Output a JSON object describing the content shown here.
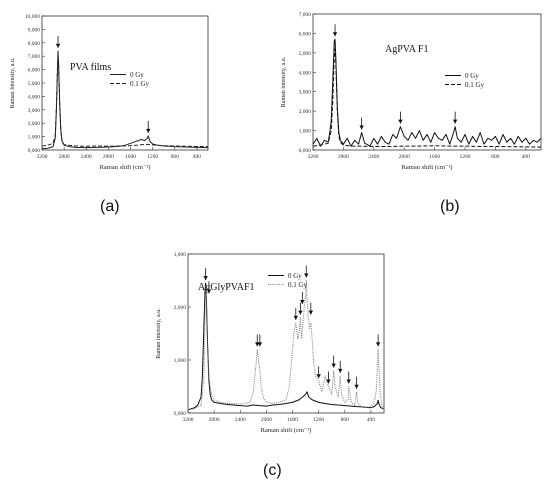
{
  "panels": [
    {
      "label": "(a)",
      "chart_data": {
        "type": "line",
        "title": "PVA films",
        "xlabel": "Raman shift (cm⁻¹)",
        "ylabel": "Raman Intensity, a.u.",
        "xlim": [
          3200,
          200
        ],
        "ylim": [
          0,
          10000
        ],
        "xticks": [
          3200,
          2800,
          2400,
          2000,
          1600,
          1200,
          800,
          400
        ],
        "yticks": [
          0,
          1000,
          2000,
          3000,
          4000,
          5000,
          6000,
          7000,
          8000,
          9000,
          10000
        ],
        "ytick_labels": [
          "0,000",
          "1,000",
          "2,000",
          "3,000",
          "4,000",
          "5,000",
          "6,000",
          "7,000",
          "8,000",
          "9,000",
          "10,000"
        ],
        "legend_position": "top-right",
        "arrows_at": [
          2910,
          1280
        ],
        "series": [
          {
            "name": "0   Gy",
            "style": "solid",
            "color": "#222222",
            "x": [
              3200,
              3100,
              3000,
              2960,
              2940,
              2920,
              2910,
              2900,
              2880,
              2860,
              2840,
              2800,
              2700,
              2600,
              2400,
              2200,
              2000,
              1800,
              1700,
              1600,
              1500,
              1450,
              1400,
              1350,
              1300,
              1280,
              1250,
              1200,
              1100,
              1000,
              900,
              800,
              600,
              400,
              200
            ],
            "y": [
              100,
              120,
              250,
              900,
              3000,
              6000,
              7400,
              6500,
              3500,
              1500,
              700,
              350,
              250,
              200,
              180,
              200,
              220,
              280,
              350,
              500,
              650,
              700,
              800,
              700,
              850,
              1050,
              650,
              450,
              350,
              300,
              280,
              250,
              220,
              200,
              180
            ]
          },
          {
            "name": "0.1 Gy",
            "style": "dashed",
            "color": "#222222",
            "x": [
              3200,
              3100,
              3000,
              2960,
              2940,
              2920,
              2910,
              2900,
              2880,
              2860,
              2840,
              2800,
              2700,
              2600,
              2400,
              2200,
              2000,
              1800,
              1600,
              1500,
              1400,
              1300,
              1200,
              1100,
              1000,
              800,
              600,
              400,
              200
            ],
            "y": [
              300,
              350,
              500,
              1100,
              3200,
              6200,
              7000,
              6200,
              3300,
              1400,
              700,
              400,
              350,
              300,
              280,
              300,
              280,
              300,
              320,
              350,
              400,
              420,
              380,
              350,
              320,
              300,
              280,
              260,
              250
            ]
          }
        ]
      }
    },
    {
      "label": "(b)",
      "chart_data": {
        "type": "line",
        "title": "AgPVA F1",
        "xlabel": "Raman shift (cm⁻¹)",
        "ylabel": "Raman intensity, a.u.",
        "xlim": [
          3200,
          200
        ],
        "ylim": [
          0,
          7000
        ],
        "xticks": [
          3200,
          2800,
          2400,
          2000,
          1600,
          1200,
          800,
          400
        ],
        "yticks": [
          0,
          1000,
          2000,
          3000,
          4000,
          5000,
          6000,
          7000
        ],
        "ytick_labels": [
          "0,000",
          "1,000",
          "2,000",
          "3,000",
          "4,000",
          "5,000",
          "6,000",
          "7,000"
        ],
        "legend_position": "top-right",
        "arrows_at": [
          2910,
          2560,
          2050,
          1330
        ],
        "series": [
          {
            "name": "0   Gy",
            "style": "solid",
            "color": "#111111",
            "x": [
              3200,
              3150,
              3100,
              3050,
              3000,
              2980,
              2960,
              2940,
              2920,
              2910,
              2900,
              2880,
              2860,
              2840,
              2800,
              2750,
              2700,
              2650,
              2600,
              2560,
              2520,
              2450,
              2400,
              2350,
              2300,
              2250,
              2200,
              2150,
              2100,
              2050,
              2000,
              1950,
              1900,
              1850,
              1800,
              1750,
              1700,
              1650,
              1600,
              1550,
              1500,
              1450,
              1400,
              1350,
              1330,
              1300,
              1250,
              1200,
              1150,
              1100,
              1050,
              1000,
              950,
              900,
              850,
              800,
              750,
              700,
              650,
              600,
              550,
              500,
              450,
              400,
              350,
              300,
              250,
              200
            ],
            "y": [
              300,
              600,
              200,
              500,
              400,
              900,
              1500,
              3500,
              5600,
              5700,
              4800,
              2200,
              900,
              500,
              300,
              600,
              200,
              500,
              300,
              900,
              350,
              200,
              600,
              300,
              700,
              400,
              300,
              800,
              600,
              1200,
              700,
              500,
              900,
              600,
              1000,
              500,
              800,
              400,
              900,
              600,
              500,
              800,
              300,
              900,
              1200,
              600,
              400,
              800,
              300,
              700,
              400,
              900,
              300,
              600,
              500,
              700,
              300,
              800,
              400,
              600,
              300,
              700,
              400,
              600,
              300,
              500,
              400,
              600
            ]
          },
          {
            "name": "0.1 Gy",
            "style": "dashed",
            "color": "#111111",
            "x": [
              3200,
              3100,
              3000,
              2960,
              2940,
              2920,
              2910,
              2900,
              2880,
              2860,
              2840,
              2800,
              2700,
              2600,
              2400,
              2200,
              2000,
              1800,
              1600,
              1400,
              1200,
              1000,
              800,
              600,
              400,
              200
            ],
            "y": [
              200,
              250,
              350,
              1000,
              2500,
              4800,
              5200,
              4500,
              2000,
              700,
              400,
              250,
              200,
              200,
              180,
              180,
              200,
              200,
              220,
              200,
              200,
              180,
              180,
              170,
              160,
              150
            ]
          }
        ]
      }
    },
    {
      "label": "(c)",
      "chart_data": {
        "type": "line",
        "title": "AgGlyPVAF1",
        "xlabel": "Raman shift (cm⁻¹)",
        "ylabel": "Raman intensity, a.u.",
        "xlim": [
          3200,
          200
        ],
        "ylim": [
          0,
          3000
        ],
        "xticks": [
          3200,
          2800,
          2400,
          2000,
          1600,
          1200,
          800,
          400
        ],
        "yticks": [
          0,
          1000,
          2000,
          3000
        ],
        "ytick_labels": [
          "0,000",
          "1,000",
          "2,000",
          "3,000"
        ],
        "legend_position": "top-right",
        "arrows_at": [
          2930,
          2880,
          2140,
          2100,
          1550,
          1480,
          1450,
          1390,
          1320,
          1200,
          1050,
          970,
          870,
          740,
          620,
          290
        ],
        "series": [
          {
            "name": "0   Gy",
            "style": "solid",
            "color": "#111111",
            "x": [
              3200,
              3150,
              3100,
              3050,
              3000,
              2980,
              2960,
              2940,
              2930,
              2920,
              2900,
              2880,
              2860,
              2840,
              2800,
              2700,
              2600,
              2500,
              2400,
              2300,
              2200,
              2100,
              2000,
              1900,
              1800,
              1700,
              1600,
              1500,
              1450,
              1400,
              1380,
              1350,
              1300,
              1200,
              1100,
              1000,
              900,
              800,
              700,
              600,
              500,
              400,
              350,
              300,
              290,
              280,
              250,
              200
            ],
            "y": [
              60,
              80,
              100,
              150,
              300,
              700,
              1500,
              2300,
              2450,
              2200,
              1300,
              600,
              350,
              250,
              200,
              180,
              160,
              150,
              140,
              130,
              150,
              140,
              130,
              150,
              160,
              180,
              200,
              250,
              300,
              350,
              400,
              300,
              250,
              200,
              180,
              160,
              150,
              140,
              130,
              120,
              110,
              100,
              120,
              180,
              240,
              180,
              100,
              80
            ]
          },
          {
            "name": "0.1 Gy",
            "style": "dotted",
            "color": "#777777",
            "x": [
              3200,
              3100,
              3000,
              2960,
              2940,
              2930,
              2920,
              2900,
              2880,
              2860,
              2840,
              2800,
              2700,
              2600,
              2400,
              2250,
              2200,
              2160,
              2140,
              2120,
              2100,
              2080,
              2050,
              2000,
              1900,
              1800,
              1700,
              1650,
              1600,
              1580,
              1550,
              1520,
              1500,
              1480,
              1460,
              1440,
              1420,
              1400,
              1390,
              1380,
              1360,
              1340,
              1320,
              1300,
              1280,
              1250,
              1200,
              1150,
              1100,
              1050,
              1000,
              970,
              950,
              900,
              870,
              850,
              800,
              750,
              740,
              700,
              650,
              620,
              600,
              550,
              500,
              400,
              350,
              320,
              300,
              290,
              280,
              260,
              230,
              200
            ],
            "y": [
              60,
              80,
              150,
              600,
              1800,
              2400,
              2200,
              1200,
              700,
              500,
              350,
              250,
              200,
              180,
              170,
              200,
              400,
              900,
              1200,
              1000,
              800,
              500,
              300,
              200,
              180,
              200,
              250,
              500,
              1200,
              1500,
              1700,
              1400,
              1500,
              1800,
              1400,
              1700,
              2000,
              2200,
              2500,
              2200,
              1800,
              1600,
              1700,
              1400,
              1000,
              700,
              600,
              400,
              700,
              500,
              350,
              800,
              500,
              300,
              700,
              350,
              200,
              250,
              500,
              200,
              150,
              400,
              180,
              120,
              100,
              120,
              200,
              400,
              900,
              1200,
              900,
              400,
              150,
              80
            ]
          }
        ]
      }
    }
  ]
}
